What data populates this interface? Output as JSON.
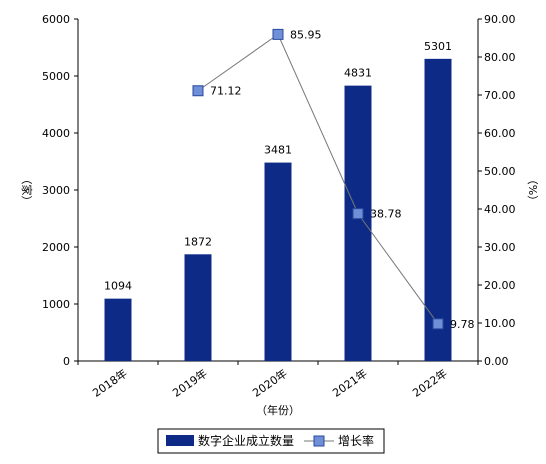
{
  "chart_data": {
    "type": "bar",
    "categories": [
      "2018年",
      "2019年",
      "2020年",
      "2021年",
      "2022年"
    ],
    "xlabel": "（年份）",
    "y_left": {
      "label": "（家）",
      "range": [
        0,
        6000
      ],
      "ticks": [
        "0",
        "1000",
        "2000",
        "3000",
        "4000",
        "5000",
        "6000"
      ]
    },
    "y_right": {
      "label": "（%）",
      "range": [
        0,
        90
      ],
      "ticks": [
        "0.00",
        "10.00",
        "20.00",
        "30.00",
        "40.00",
        "50.00",
        "60.00",
        "70.00",
        "80.00",
        "90.00"
      ]
    },
    "series": [
      {
        "name": "数字企业成立数量",
        "type": "bar",
        "axis": "left",
        "color": "#0d2b86",
        "values": [
          1094,
          1872,
          3481,
          4831,
          5301
        ],
        "labels": [
          "1094",
          "1872",
          "3481",
          "4831",
          "5301"
        ]
      },
      {
        "name": "增长率",
        "type": "line",
        "axis": "right",
        "color": "#6f8fd6",
        "line_color": "#777777",
        "values": [
          null,
          71.12,
          85.95,
          38.78,
          9.78
        ],
        "labels": [
          "",
          "71.12",
          "85.95",
          "38.78",
          "9.78"
        ]
      }
    ],
    "grid": false,
    "legend": "bottom"
  }
}
